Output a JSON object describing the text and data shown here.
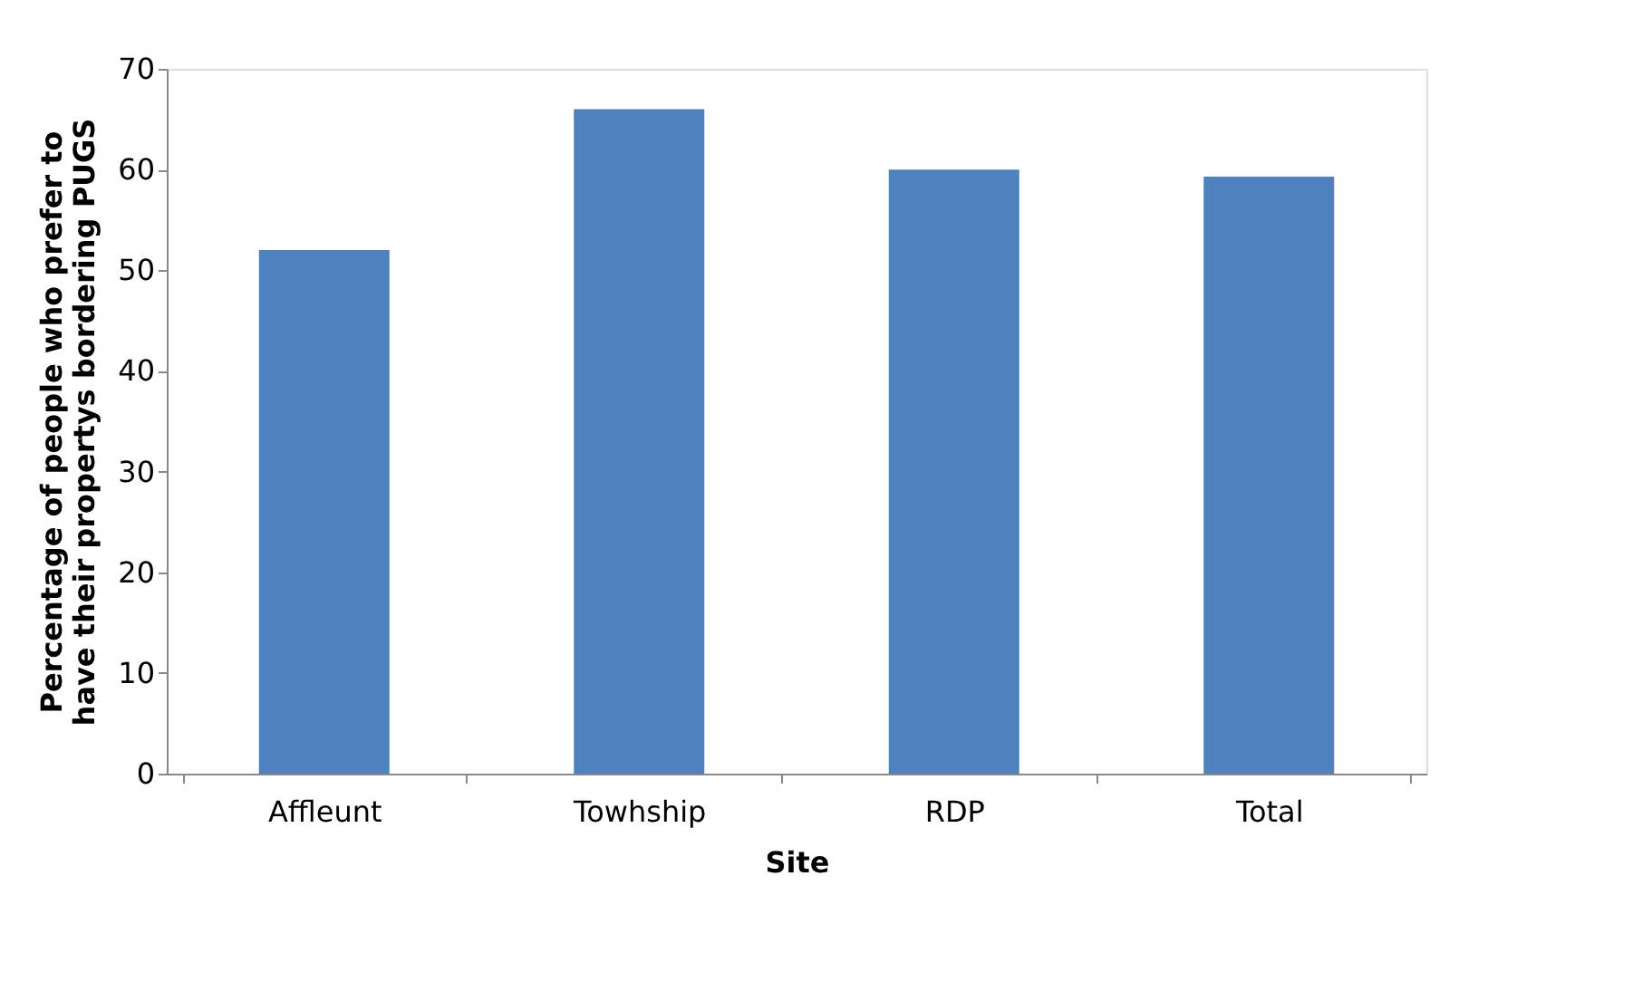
{
  "chart_data": {
    "type": "bar",
    "xlabel": "Site",
    "ylabel": "Percentage of people who prefer to\nhave their propertys bordering PUGS",
    "categories": [
      "Affleunt",
      "Towhship",
      "RDP",
      "Total"
    ],
    "values": [
      52,
      66,
      60,
      59.3
    ],
    "color": "#4f81bd",
    "ylim": [
      0,
      70
    ],
    "yticks": [
      0,
      10,
      20,
      30,
      40,
      50,
      60,
      70
    ],
    "grid": false
  }
}
